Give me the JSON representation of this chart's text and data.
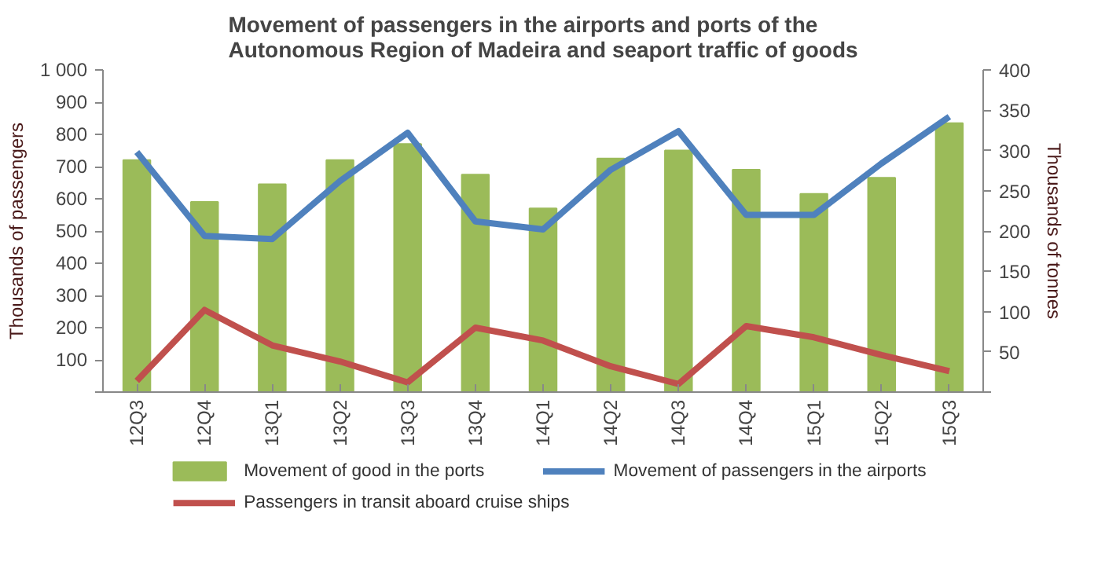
{
  "chart_data": {
    "type": "bar",
    "title": "Movement of passengers in the airports and ports of the\nAutonomous Region of Madeira and seaport traffic of goods",
    "categories": [
      "12Q3",
      "12Q4",
      "13Q1",
      "13Q2",
      "13Q3",
      "13Q4",
      "14Q1",
      "14Q2",
      "14Q3",
      "14Q4",
      "15Q1",
      "15Q2",
      "15Q3"
    ],
    "series": [
      {
        "name": "Movement of good in the ports",
        "axis": "y2",
        "color": "#9bbb59",
        "values": [
          288,
          236,
          258,
          288,
          308,
          270,
          228,
          290,
          300,
          276,
          246,
          266,
          334
        ]
      },
      {
        "name": "Movement of passengers in the airports",
        "type": "line",
        "color": "#4f81bd",
        "values": [
          745,
          485,
          475,
          655,
          805,
          530,
          505,
          690,
          810,
          550,
          550,
          710,
          855
        ]
      },
      {
        "name": "Passengers in transit aboard cruise ships",
        "type": "line",
        "color": "#c0504d",
        "values": [
          35,
          255,
          145,
          95,
          30,
          200,
          160,
          80,
          25,
          205,
          170,
          115,
          65
        ]
      }
    ],
    "ylabel": "Thousands of passengers",
    "y2label": "Thousands of tonnes",
    "ylim": [
      0,
      1000
    ],
    "yticks": [
      {
        "value": 0,
        "label": null
      },
      100,
      200,
      300,
      400,
      500,
      600,
      700,
      800,
      900,
      {
        "value": 1000,
        "label": "1 000"
      }
    ],
    "y2lim": [
      0,
      400
    ],
    "y2ticks": [
      {
        "value": 0,
        "label": null
      },
      50,
      100,
      150,
      200,
      250,
      300,
      350,
      400
    ],
    "grid": false,
    "legend": "bottom",
    "line_style": "solid",
    "marker": "none"
  }
}
